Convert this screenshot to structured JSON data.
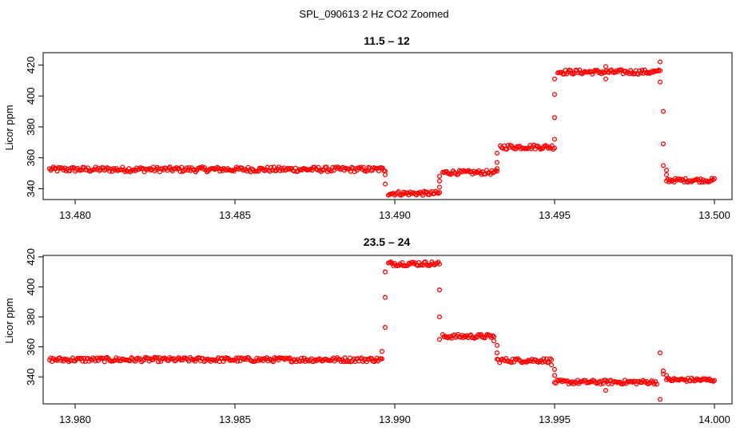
{
  "title": "SPL_090613  2 Hz CO2 Zoomed",
  "point_color": "#ff0000",
  "chart_data": [
    {
      "type": "scatter",
      "title": "11.5 – 12",
      "xlabel": "",
      "ylabel": "Licor ppm",
      "xlim": [
        13.4792,
        13.5
      ],
      "ylim": [
        333,
        428
      ],
      "xticks": [
        "13.480",
        "13.485",
        "13.490",
        "13.495",
        "13.500"
      ],
      "yticks": [
        "340",
        "360",
        "380",
        "400",
        "420"
      ],
      "xtick_values": [
        13.48,
        13.485,
        13.49,
        13.495,
        13.5
      ],
      "ytick_values": [
        340,
        360,
        380,
        400,
        420
      ],
      "segments": [
        {
          "x0": 13.4792,
          "x1": 13.4897,
          "y": 352.5,
          "spread": 1.6
        },
        {
          "x0": 13.4898,
          "x1": 13.4914,
          "y": 337.0,
          "spread": 1.4
        },
        {
          "x0": 13.4915,
          "x1": 13.4932,
          "y": 350.5,
          "spread": 1.4
        },
        {
          "x0": 13.4933,
          "x1": 13.495,
          "y": 367.0,
          "spread": 1.5
        },
        {
          "x0": 13.4951,
          "x1": 13.4983,
          "y": 415.5,
          "spread": 1.5
        },
        {
          "x0": 13.4985,
          "x1": 13.5,
          "y": 345.5,
          "spread": 1.3
        }
      ],
      "outliers": [
        {
          "x": 13.4897,
          "y": 349
        },
        {
          "x": 13.4897,
          "y": 343
        },
        {
          "x": 13.4914,
          "y": 341
        },
        {
          "x": 13.4914,
          "y": 345
        },
        {
          "x": 13.4914,
          "y": 348
        },
        {
          "x": 13.4932,
          "y": 353
        },
        {
          "x": 13.4932,
          "y": 357
        },
        {
          "x": 13.4932,
          "y": 363
        },
        {
          "x": 13.495,
          "y": 372
        },
        {
          "x": 13.495,
          "y": 386
        },
        {
          "x": 13.495,
          "y": 401
        },
        {
          "x": 13.495,
          "y": 411
        },
        {
          "x": 13.4966,
          "y": 419
        },
        {
          "x": 13.4966,
          "y": 411
        },
        {
          "x": 13.4983,
          "y": 422
        },
        {
          "x": 13.4983,
          "y": 409
        },
        {
          "x": 13.4984,
          "y": 390
        },
        {
          "x": 13.4984,
          "y": 369
        },
        {
          "x": 13.4984,
          "y": 355
        },
        {
          "x": 13.4985,
          "y": 352
        },
        {
          "x": 13.4985,
          "y": 349
        }
      ]
    },
    {
      "type": "scatter",
      "title": "23.5 – 24",
      "xlabel": "",
      "ylabel": "Licor ppm",
      "xlim": [
        13.9792,
        14.0
      ],
      "ylim": [
        322,
        421
      ],
      "xticks": [
        "13.980",
        "13.985",
        "13.990",
        "13.995",
        "14.000"
      ],
      "yticks": [
        "340",
        "360",
        "380",
        "400",
        "420"
      ],
      "xtick_values": [
        13.98,
        13.985,
        13.99,
        13.995,
        14.0
      ],
      "ytick_values": [
        340,
        360,
        380,
        400,
        420
      ],
      "segments": [
        {
          "x0": 13.9792,
          "x1": 13.9896,
          "y": 351.5,
          "spread": 1.5
        },
        {
          "x0": 13.9898,
          "x1": 13.9914,
          "y": 415.5,
          "spread": 1.5
        },
        {
          "x0": 13.9915,
          "x1": 13.9931,
          "y": 367.0,
          "spread": 1.4
        },
        {
          "x0": 13.9932,
          "x1": 13.9949,
          "y": 351.0,
          "spread": 1.5
        },
        {
          "x0": 13.995,
          "x1": 13.9982,
          "y": 336.5,
          "spread": 1.4
        },
        {
          "x0": 13.9985,
          "x1": 14.0,
          "y": 338.0,
          "spread": 1.3
        }
      ],
      "outliers": [
        {
          "x": 13.9896,
          "y": 357
        },
        {
          "x": 13.9897,
          "y": 373
        },
        {
          "x": 13.9897,
          "y": 393
        },
        {
          "x": 13.9897,
          "y": 410
        },
        {
          "x": 13.9914,
          "y": 398
        },
        {
          "x": 13.9914,
          "y": 380
        },
        {
          "x": 13.9914,
          "y": 365
        },
        {
          "x": 13.9931,
          "y": 364
        },
        {
          "x": 13.9932,
          "y": 361
        },
        {
          "x": 13.9932,
          "y": 356
        },
        {
          "x": 13.9949,
          "y": 348
        },
        {
          "x": 13.995,
          "y": 345
        },
        {
          "x": 13.995,
          "y": 341
        },
        {
          "x": 13.9966,
          "y": 331
        },
        {
          "x": 13.9983,
          "y": 325
        },
        {
          "x": 13.9983,
          "y": 356
        },
        {
          "x": 13.9984,
          "y": 344
        },
        {
          "x": 13.9984,
          "y": 342
        },
        {
          "x": 13.9985,
          "y": 341
        }
      ]
    }
  ]
}
